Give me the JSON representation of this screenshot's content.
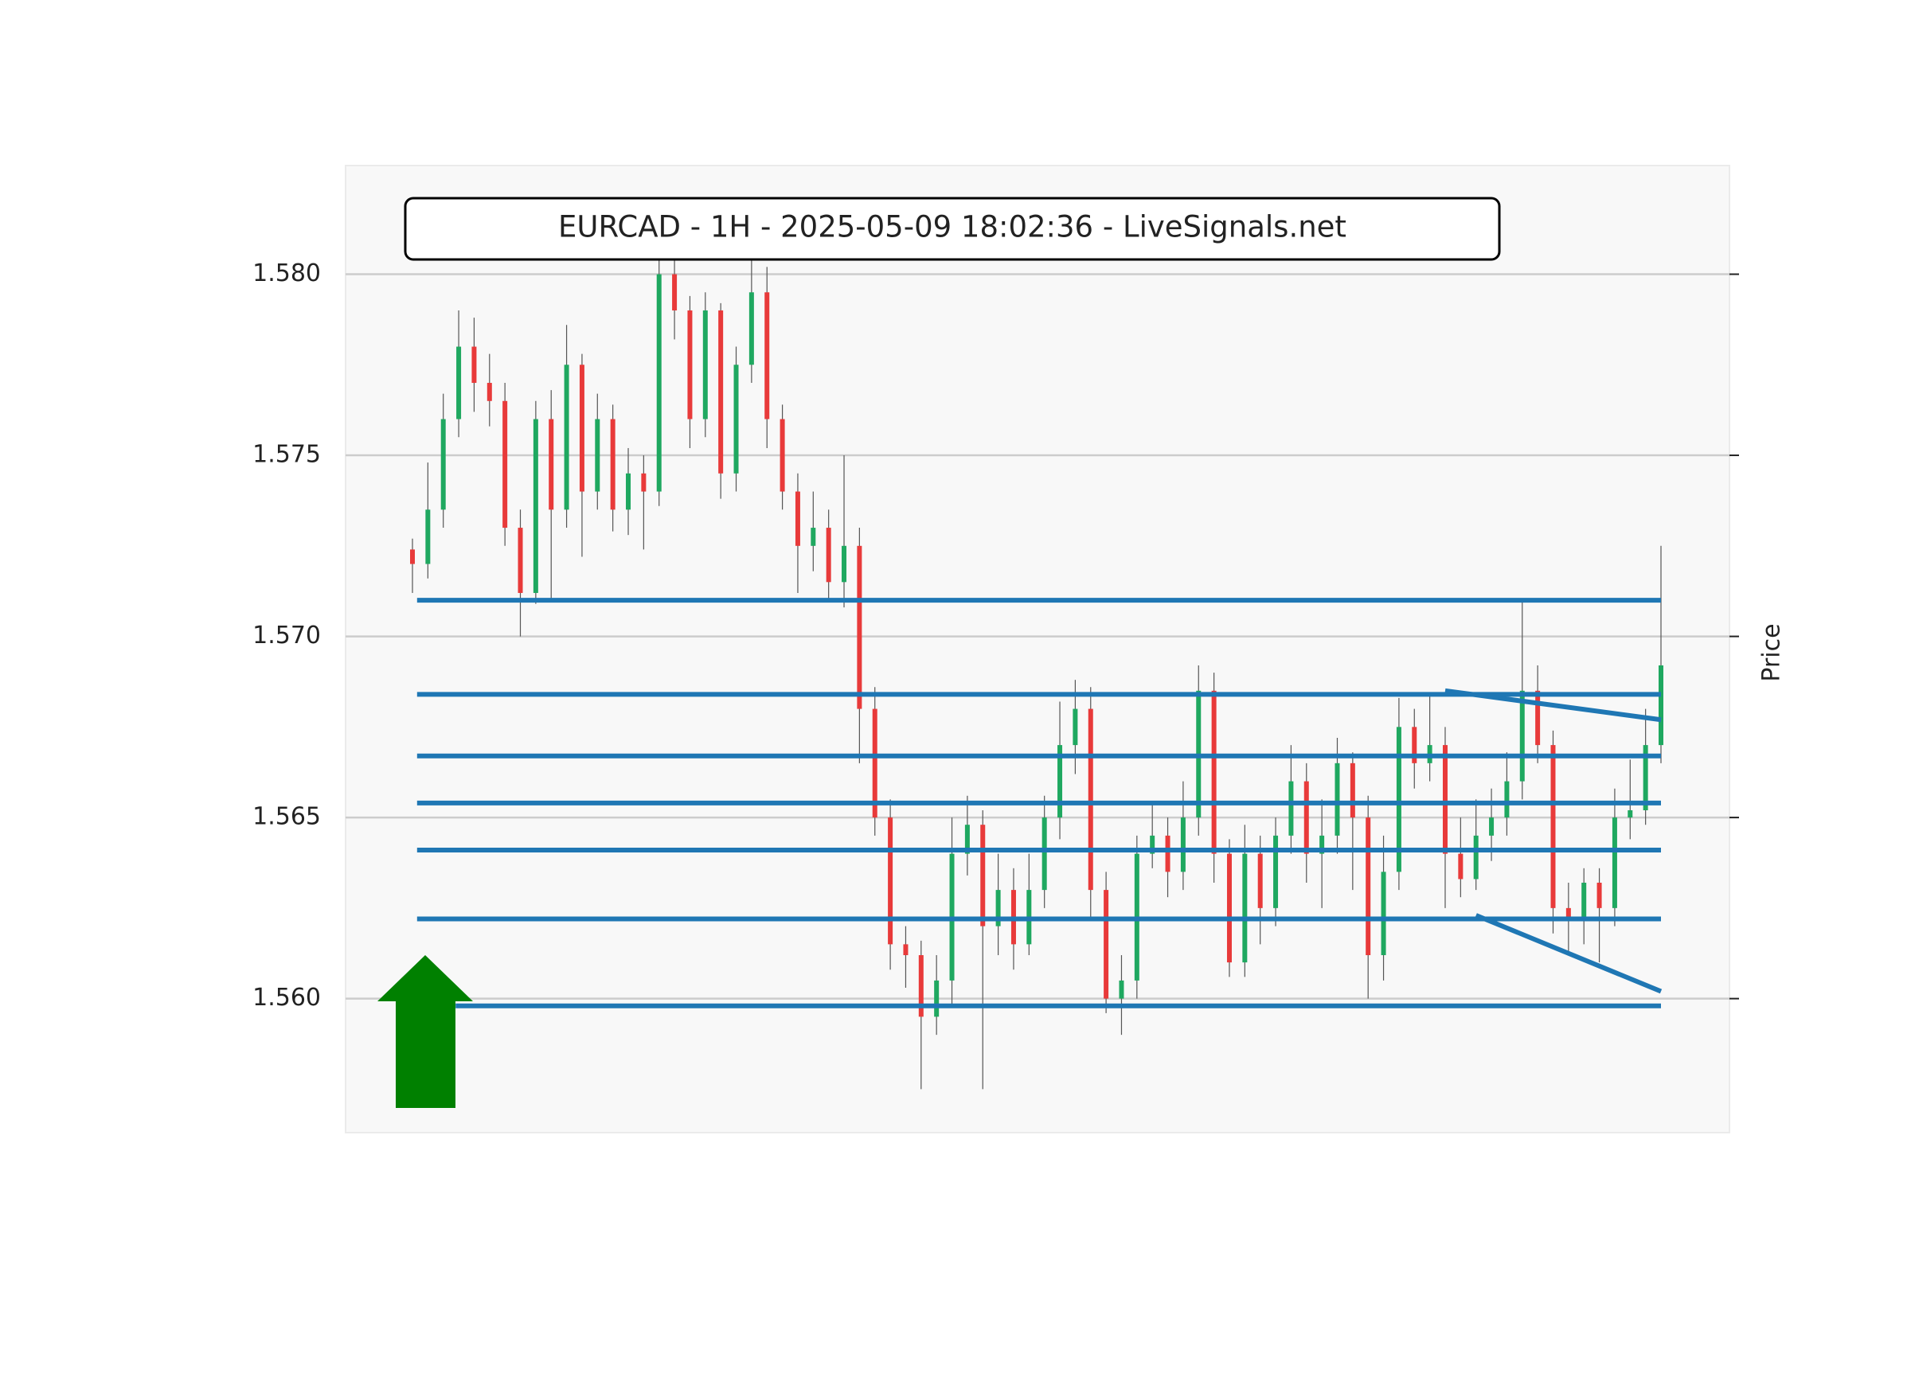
{
  "chart_data": {
    "type": "candlestick",
    "title": "EURCAD - 1H - 2025-05-09 18:02:36 - LiveSignals.net",
    "y_label": "Price",
    "ylim": [
      1.5563,
      1.583
    ],
    "yticks": [
      {
        "value": 1.56,
        "label": "1.560"
      },
      {
        "value": 1.565,
        "label": "1.565"
      },
      {
        "value": 1.57,
        "label": "1.570"
      },
      {
        "value": 1.575,
        "label": "1.575"
      },
      {
        "value": 1.58,
        "label": "1.580"
      }
    ],
    "grid": true,
    "up_color": "#1fa860",
    "down_color": "#e83a3a",
    "line_color": "#1f77b4",
    "open": [
      1.5724,
      1.572,
      1.5735,
      1.576,
      1.578,
      1.577,
      1.5765,
      1.573,
      1.5712,
      1.576,
      1.5735,
      1.5775,
      1.574,
      1.576,
      1.5735,
      1.5745,
      1.574,
      1.58,
      1.579,
      1.576,
      1.579,
      1.5745,
      1.5775,
      1.5795,
      1.576,
      1.574,
      1.5725,
      1.573,
      1.5715,
      1.5725,
      1.568,
      1.565,
      1.5615,
      1.5612,
      1.5595,
      1.5605,
      1.564,
      1.5648,
      1.562,
      1.563,
      1.5615,
      1.563,
      1.565,
      1.567,
      1.568,
      1.563,
      1.56,
      1.5605,
      1.564,
      1.5645,
      1.5635,
      1.565,
      1.5685,
      1.564,
      1.561,
      1.564,
      1.5625,
      1.5645,
      1.566,
      1.564,
      1.5645,
      1.5665,
      1.565,
      1.5612,
      1.5635,
      1.5675,
      1.5665,
      1.567,
      1.564,
      1.5633,
      1.5645,
      1.565,
      1.566,
      1.5685,
      1.567,
      1.5625,
      1.5622,
      1.5632,
      1.5625,
      1.565,
      1.5652,
      1.567
    ],
    "high": [
      1.5727,
      1.5748,
      1.5767,
      1.579,
      1.5788,
      1.5778,
      1.577,
      1.5735,
      1.5765,
      1.5768,
      1.5786,
      1.5778,
      1.5767,
      1.5764,
      1.5752,
      1.575,
      1.5806,
      1.5805,
      1.5794,
      1.5795,
      1.5792,
      1.578,
      1.5806,
      1.5802,
      1.5764,
      1.5745,
      1.574,
      1.5735,
      1.575,
      1.573,
      1.5686,
      1.5655,
      1.562,
      1.5616,
      1.5612,
      1.565,
      1.5656,
      1.5652,
      1.564,
      1.5636,
      1.564,
      1.5656,
      1.5682,
      1.5688,
      1.5686,
      1.5635,
      1.5612,
      1.5645,
      1.5654,
      1.565,
      1.566,
      1.5692,
      1.569,
      1.5644,
      1.5648,
      1.5645,
      1.565,
      1.567,
      1.5665,
      1.5655,
      1.5672,
      1.5668,
      1.5656,
      1.5645,
      1.5683,
      1.568,
      1.5684,
      1.5675,
      1.565,
      1.5655,
      1.5658,
      1.5668,
      1.571,
      1.5692,
      1.5674,
      1.5632,
      1.5636,
      1.5636,
      1.5658,
      1.5666,
      1.568,
      1.5725
    ],
    "low": [
      1.5712,
      1.5716,
      1.573,
      1.5755,
      1.5762,
      1.5758,
      1.5725,
      1.57,
      1.5709,
      1.571,
      1.573,
      1.5722,
      1.5735,
      1.5729,
      1.5728,
      1.5724,
      1.5736,
      1.5782,
      1.5752,
      1.5755,
      1.5738,
      1.574,
      1.577,
      1.5752,
      1.5735,
      1.5712,
      1.5718,
      1.571,
      1.5708,
      1.5665,
      1.5645,
      1.5608,
      1.5603,
      1.5575,
      1.559,
      1.5598,
      1.5634,
      1.5575,
      1.5612,
      1.5608,
      1.5612,
      1.5625,
      1.5644,
      1.5662,
      1.5622,
      1.5596,
      1.559,
      1.56,
      1.5636,
      1.5628,
      1.563,
      1.5645,
      1.5632,
      1.5606,
      1.5606,
      1.5615,
      1.562,
      1.564,
      1.5632,
      1.5625,
      1.564,
      1.563,
      1.56,
      1.5605,
      1.563,
      1.5658,
      1.566,
      1.5625,
      1.5628,
      1.563,
      1.5638,
      1.5645,
      1.5655,
      1.5665,
      1.5618,
      1.5612,
      1.5615,
      1.561,
      1.562,
      1.5644,
      1.5648,
      1.5665
    ],
    "close": [
      1.572,
      1.5735,
      1.576,
      1.578,
      1.577,
      1.5765,
      1.573,
      1.5712,
      1.576,
      1.5735,
      1.5775,
      1.574,
      1.576,
      1.5735,
      1.5745,
      1.574,
      1.58,
      1.579,
      1.576,
      1.579,
      1.5745,
      1.5775,
      1.5795,
      1.576,
      1.574,
      1.5725,
      1.573,
      1.5715,
      1.5725,
      1.568,
      1.565,
      1.5615,
      1.5612,
      1.5595,
      1.5605,
      1.564,
      1.5648,
      1.562,
      1.563,
      1.5615,
      1.563,
      1.565,
      1.567,
      1.568,
      1.563,
      1.56,
      1.5605,
      1.564,
      1.5645,
      1.5635,
      1.565,
      1.5685,
      1.564,
      1.561,
      1.564,
      1.5625,
      1.5645,
      1.566,
      1.564,
      1.5645,
      1.5665,
      1.565,
      1.5612,
      1.5635,
      1.5675,
      1.5665,
      1.567,
      1.564,
      1.5633,
      1.5645,
      1.565,
      1.566,
      1.5685,
      1.567,
      1.5625,
      1.5622,
      1.5632,
      1.5625,
      1.565,
      1.5652,
      1.567,
      1.5692
    ],
    "lines": [
      {
        "x": [
          0.3,
          81
        ],
        "y": [
          1.571,
          1.571
        ]
      },
      {
        "x": [
          0.3,
          81
        ],
        "y": [
          1.5684,
          1.5684
        ]
      },
      {
        "x": [
          0.3,
          81
        ],
        "y": [
          1.5667,
          1.5667
        ]
      },
      {
        "x": [
          0.3,
          81
        ],
        "y": [
          1.5654,
          1.5654
        ]
      },
      {
        "x": [
          0.3,
          81
        ],
        "y": [
          1.5641,
          1.5641
        ]
      },
      {
        "x": [
          0.3,
          81
        ],
        "y": [
          1.5622,
          1.5622
        ]
      },
      {
        "x": [
          2.8,
          81
        ],
        "y": [
          1.5598,
          1.5598
        ]
      },
      {
        "x": [
          67,
          81
        ],
        "y": [
          1.5685,
          1.5677
        ]
      },
      {
        "x": [
          69,
          81
        ],
        "y": [
          1.5623,
          1.5602
        ]
      }
    ]
  }
}
